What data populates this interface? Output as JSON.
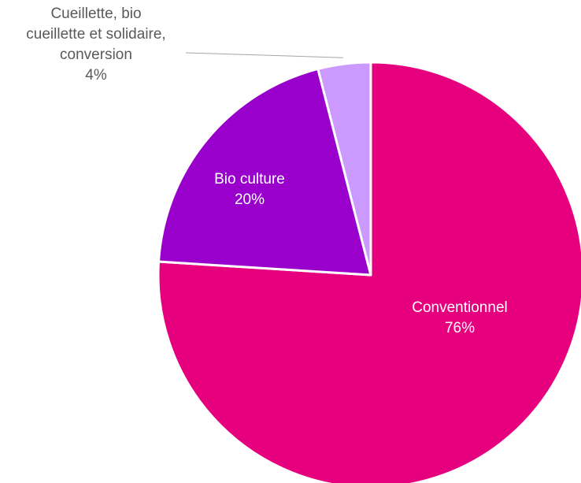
{
  "chart_data": {
    "type": "pie",
    "title": "",
    "slices": [
      {
        "label": "Conventionnel",
        "value": 76,
        "display": "76%",
        "color": "#e6007e",
        "label_color": "#ffffff"
      },
      {
        "label": "Bio culture",
        "value": 20,
        "display": "20%",
        "color": "#9900cc",
        "label_color": "#ffffff"
      },
      {
        "label_lines": [
          "Cueillette, bio",
          "cueillette et solidaire,",
          "conversion"
        ],
        "value": 4,
        "display": "4%",
        "color": "#cc99ff",
        "label_color": "#595959"
      }
    ],
    "start_angle": "12 o'clock",
    "direction": "clockwise",
    "legend": "none"
  }
}
